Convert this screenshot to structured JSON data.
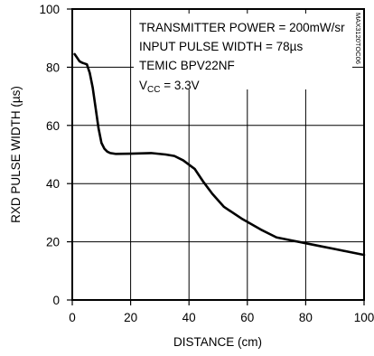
{
  "chart_data": {
    "type": "line",
    "title": "",
    "xlabel": "DISTANCE (cm)",
    "ylabel": "RXD PULSE WIDTH (µs)",
    "xlim": [
      0,
      100
    ],
    "ylim": [
      0,
      100
    ],
    "x_ticks": [
      "0",
      "20",
      "40",
      "60",
      "80",
      "100"
    ],
    "y_ticks": [
      "0",
      "20",
      "40",
      "60",
      "80",
      "100"
    ],
    "grid": true,
    "legend": "none",
    "annotations": [
      "TRANSMITTER POWER = 200mW/sr",
      "INPUT PULSE WIDTH = 78µs",
      "TEMIC BPV22NF",
      "V",
      "CC",
      " = 3.3V"
    ],
    "corner_code": "MAX3120TOC06",
    "line_color": "#000000",
    "series": [
      {
        "name": "",
        "x": [
          0.8,
          1.5,
          2.5,
          3.5,
          5,
          6,
          7,
          8,
          9,
          10,
          11,
          12,
          13,
          15,
          20,
          27,
          32,
          35,
          38,
          42,
          45,
          48,
          52,
          58,
          65,
          70,
          75,
          80,
          85,
          90,
          95,
          100
        ],
        "y": [
          84.5,
          83.5,
          82,
          81.5,
          81,
          78,
          73,
          66,
          59,
          54,
          52,
          51,
          50.5,
          50.2,
          50.3,
          50.5,
          50,
          49.5,
          48,
          45,
          40.5,
          36.5,
          32,
          28,
          24,
          21.5,
          20.5,
          19.5,
          18.5,
          17.5,
          16.5,
          15.5
        ]
      }
    ]
  }
}
